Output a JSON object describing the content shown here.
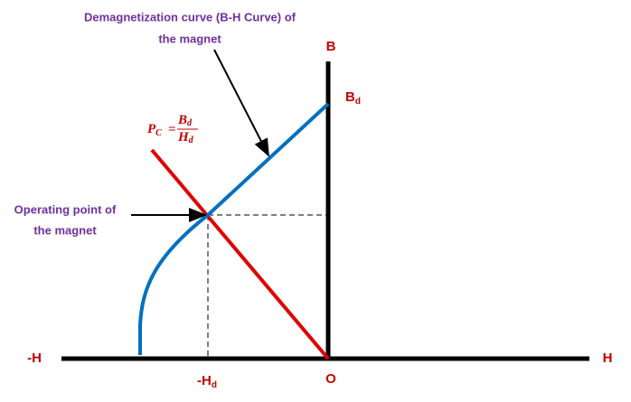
{
  "annotations": {
    "curve_label": [
      "Demagnetization curve (B-H Curve) of",
      "the magnet"
    ],
    "operating_label": [
      "Operating point of",
      "the magnet"
    ]
  },
  "axes": {
    "b_axis": "B",
    "bd": {
      "text": "B",
      "sub": "d"
    },
    "neg_h": "-H",
    "h_axis": "H",
    "origin": "O",
    "neg_hd": {
      "text": "-H",
      "sub": "d"
    }
  },
  "formula": {
    "lhs": "P",
    "lhs_sub": "C",
    "eq": "=",
    "num": "B",
    "num_sub": "d",
    "den": "H",
    "den_sub": "d"
  }
}
